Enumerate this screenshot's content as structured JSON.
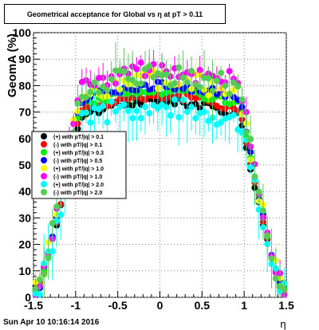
{
  "chart_data": {
    "type": "scatter",
    "title": "Geometrical acceptance for Global vs  η at pT > 0.11",
    "xlabel": "η",
    "ylabel": "GeomA (%)",
    "xlim": [
      -1.5,
      1.5
    ],
    "ylim": [
      0,
      100
    ],
    "xticks": [
      "-1.5",
      "-1",
      "-0.5",
      "0",
      "0.5",
      "1",
      "1.5"
    ],
    "yticks": [
      "0",
      "10",
      "20",
      "30",
      "40",
      "50",
      "60",
      "70",
      "80",
      "90",
      "100"
    ],
    "grid": true,
    "legend_position": "left-center",
    "footer": "Sun Apr 10 10:16:14 2016",
    "series": [
      {
        "name": "(+) with pT/|q| > 0.1",
        "color": "#000000",
        "plateau": 74
      },
      {
        "name": "(-) with pT/|q| > 0.1",
        "color": "#ff0000",
        "plateau": 76
      },
      {
        "name": "(+) with pT/|q| > 0.3",
        "color": "#00ee00",
        "plateau": 78
      },
      {
        "name": "(-) with pT/|q| > 0.5",
        "color": "#0000ff",
        "plateau": 80
      },
      {
        "name": "(+) with pT/|q| > 1.0",
        "color": "#ffff00",
        "plateau": 82
      },
      {
        "name": "(-) with pT/|q| > 1.0",
        "color": "#ff00ff",
        "plateau": 86
      },
      {
        "name": "(+) with pT/|q| > 2.0",
        "color": "#00ffff",
        "plateau": 72
      },
      {
        "name": "(-) with pT/|q| > 2.0",
        "color": "#55cc55",
        "plateau": 84
      }
    ]
  }
}
